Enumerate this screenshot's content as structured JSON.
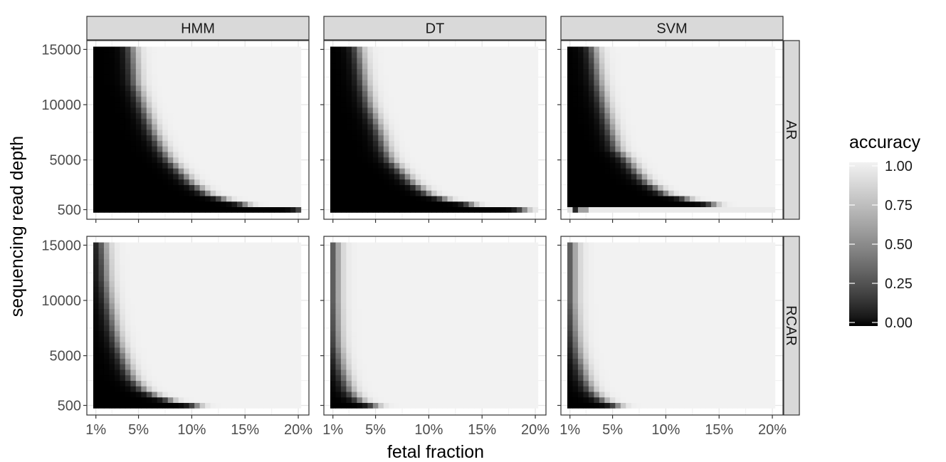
{
  "chart_data": {
    "type": "heatmap",
    "xlabel": "fetal fraction",
    "ylabel": "sequencing read depth",
    "x_tick_labels": [
      "1%",
      "5%",
      "10%",
      "15%",
      "20%"
    ],
    "x_ticks": [
      1,
      5,
      10,
      15,
      20
    ],
    "y_tick_labels": [
      "500",
      "5000",
      "10000",
      "15000"
    ],
    "y_ticks": [
      500,
      5000,
      10000,
      15000
    ],
    "xlim": [
      1,
      20
    ],
    "ylim": [
      500,
      15000
    ],
    "columns": [
      "HMM",
      "DT",
      "SVM"
    ],
    "rows": [
      "AR",
      "RCAR"
    ],
    "legend": {
      "title": "accuracy",
      "labels": [
        "1.00",
        "0.75",
        "0.50",
        "0.25",
        "0.00"
      ],
      "values": [
        1.0,
        0.75,
        0.5,
        0.25,
        0.0
      ],
      "colors": [
        "#f2f2f2",
        "#000000"
      ],
      "placement": "right"
    },
    "grid": true,
    "panels": [
      {
        "row": "AR",
        "column": "HMM",
        "boundary_fetal_fraction": [
          [
            15000,
            4.5
          ],
          [
            12000,
            4.8
          ],
          [
            10000,
            5.5
          ],
          [
            7500,
            6.5
          ],
          [
            6000,
            7.3
          ],
          [
            5000,
            8
          ],
          [
            4000,
            9
          ],
          [
            3000,
            10
          ],
          [
            2000,
            11.5
          ],
          [
            1500,
            13
          ],
          [
            1000,
            15
          ],
          [
            500,
            20.5
          ]
        ]
      },
      {
        "row": "AR",
        "column": "DT",
        "boundary_fetal_fraction": [
          [
            15000,
            3.5
          ],
          [
            12000,
            4
          ],
          [
            10000,
            4.5
          ],
          [
            7500,
            5.5
          ],
          [
            6000,
            6
          ],
          [
            5000,
            6.5
          ],
          [
            4000,
            7.5
          ],
          [
            3000,
            8.5
          ],
          [
            2000,
            10
          ],
          [
            1500,
            11.5
          ],
          [
            1000,
            14
          ],
          [
            500,
            19
          ]
        ]
      },
      {
        "row": "AR",
        "column": "SVM",
        "boundary_fetal_fraction": [
          [
            15000,
            3.3
          ],
          [
            12000,
            3.8
          ],
          [
            10000,
            4.3
          ],
          [
            7500,
            5
          ],
          [
            6000,
            5.5
          ],
          [
            5000,
            6.5
          ],
          [
            4000,
            7.3
          ],
          [
            3000,
            8.3
          ],
          [
            2000,
            10
          ],
          [
            1500,
            12
          ],
          [
            1000,
            14.5
          ],
          [
            500,
            2
          ]
        ]
      },
      {
        "row": "RCAR",
        "column": "HMM",
        "boundary_fetal_fraction": [
          [
            15000,
            1.8
          ],
          [
            12000,
            2
          ],
          [
            10000,
            2.3
          ],
          [
            7500,
            2.8
          ],
          [
            6000,
            3.2
          ],
          [
            5000,
            3.6
          ],
          [
            4000,
            4
          ],
          [
            3000,
            4.5
          ],
          [
            2000,
            5.5
          ],
          [
            1500,
            6.5
          ],
          [
            1000,
            8
          ],
          [
            500,
            10.5
          ]
        ]
      },
      {
        "row": "RCAR",
        "column": "DT",
        "boundary_fetal_fraction": [
          [
            15000,
            1.3
          ],
          [
            12000,
            1.3
          ],
          [
            10000,
            1.3
          ],
          [
            7500,
            1.4
          ],
          [
            6000,
            1.5
          ],
          [
            5000,
            1.7
          ],
          [
            4000,
            1.9
          ],
          [
            3000,
            2.2
          ],
          [
            2000,
            2.6
          ],
          [
            1500,
            3
          ],
          [
            1000,
            3.6
          ],
          [
            500,
            5
          ]
        ]
      },
      {
        "row": "RCAR",
        "column": "SVM",
        "boundary_fetal_fraction": [
          [
            15000,
            1.3
          ],
          [
            12000,
            1.3
          ],
          [
            10000,
            1.3
          ],
          [
            7500,
            1.5
          ],
          [
            6000,
            1.7
          ],
          [
            5000,
            1.9
          ],
          [
            4000,
            2.2
          ],
          [
            3000,
            2.5
          ],
          [
            2000,
            3
          ],
          [
            1500,
            3.5
          ],
          [
            1000,
            4.2
          ],
          [
            500,
            5.5
          ]
        ]
      }
    ]
  }
}
